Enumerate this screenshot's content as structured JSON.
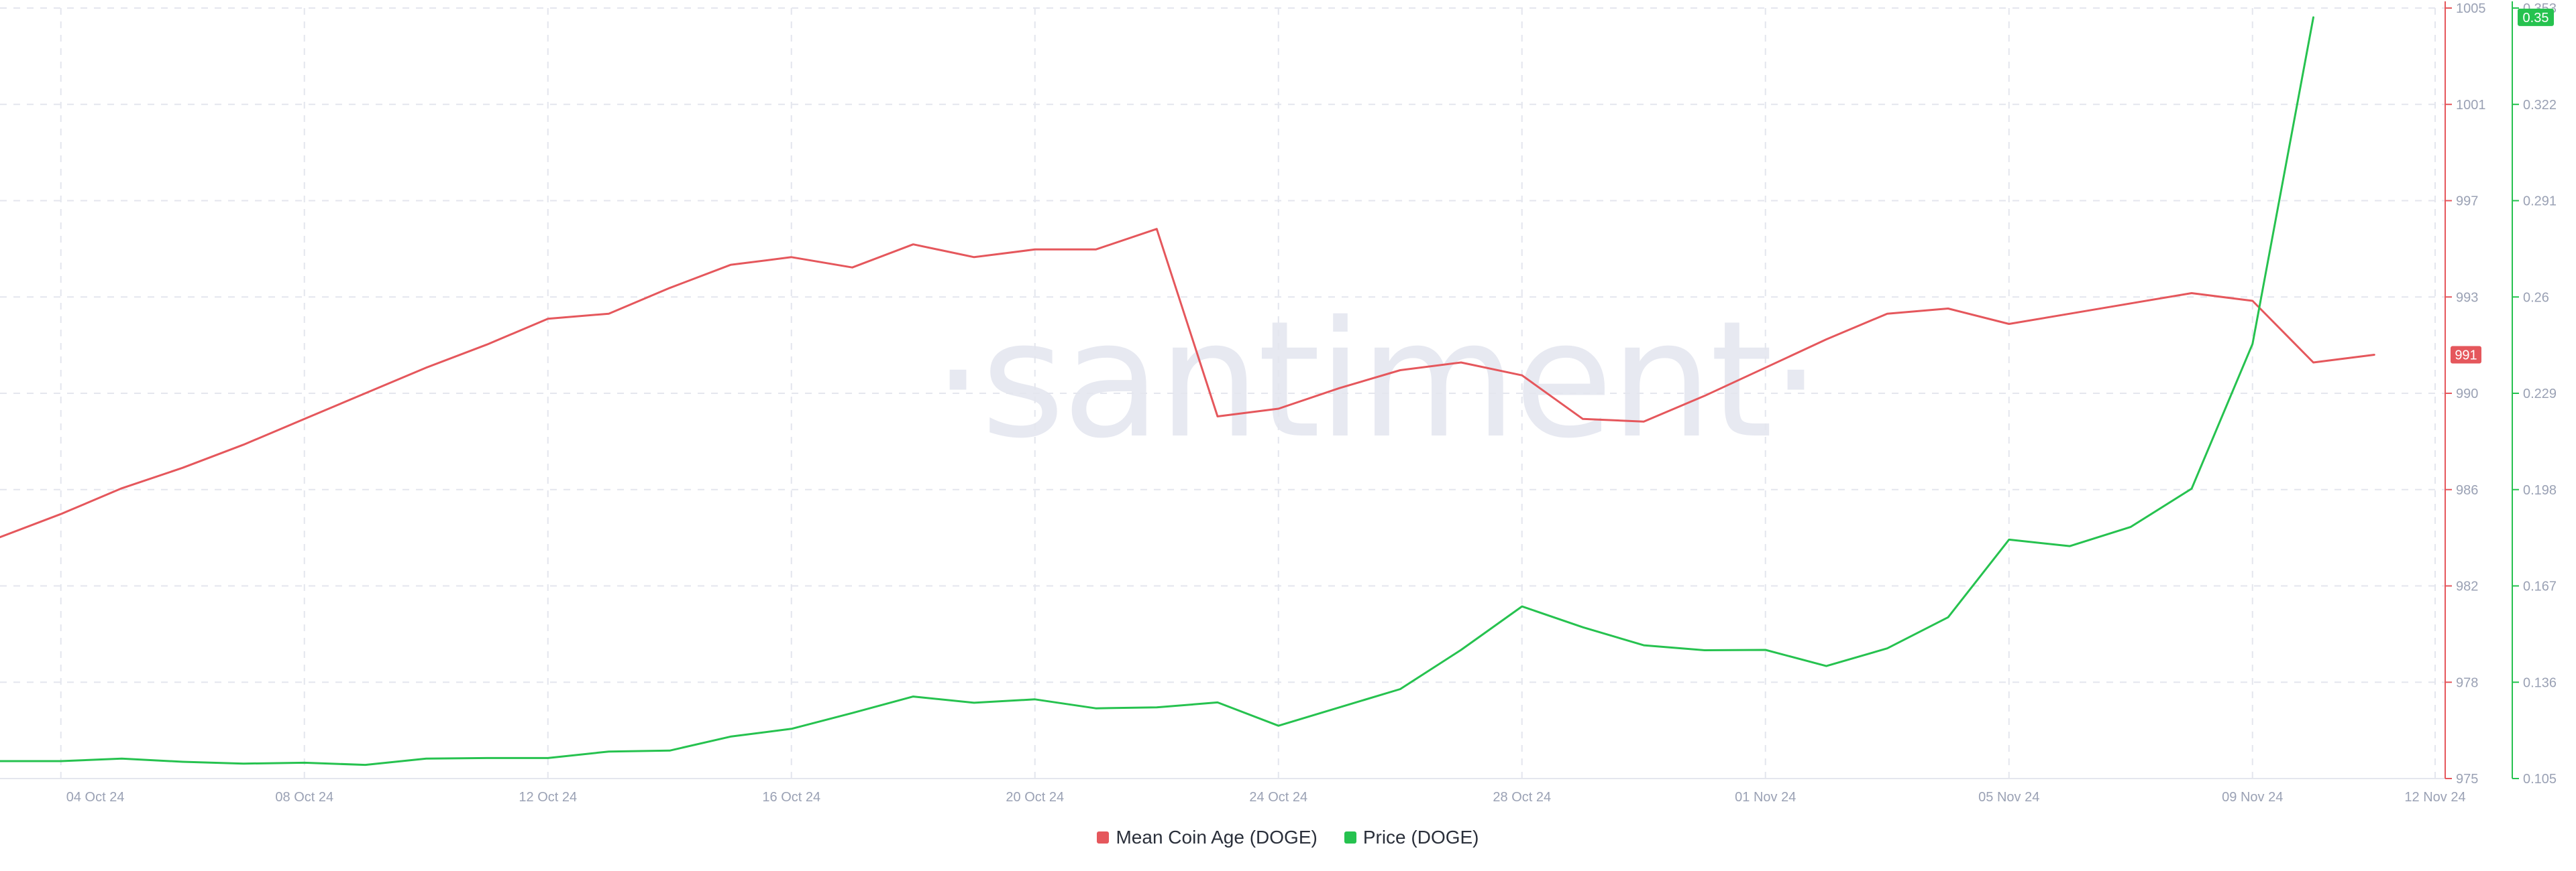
{
  "colors": {
    "mean_coin_age": "#e5575c",
    "price": "#26c24f",
    "grid": "#e4e6ee",
    "tick": "#9aa1b4"
  },
  "watermark": "·santiment·",
  "chart_data": {
    "type": "line",
    "title": "",
    "x_tick_labels": [
      "04 Oct 24",
      "08 Oct 24",
      "12 Oct 24",
      "16 Oct 24",
      "20 Oct 24",
      "24 Oct 24",
      "28 Oct 24",
      "01 Nov 24",
      "05 Nov 24",
      "09 Nov 24",
      "12 Nov 24"
    ],
    "x": [
      "03 Oct 24",
      "04 Oct 24",
      "05 Oct 24",
      "06 Oct 24",
      "07 Oct 24",
      "08 Oct 24",
      "09 Oct 24",
      "10 Oct 24",
      "11 Oct 24",
      "12 Oct 24",
      "13 Oct 24",
      "14 Oct 24",
      "15 Oct 24",
      "16 Oct 24",
      "17 Oct 24",
      "18 Oct 24",
      "19 Oct 24",
      "20 Oct 24",
      "21 Oct 24",
      "22 Oct 24",
      "23 Oct 24",
      "24 Oct 24",
      "25 Oct 24",
      "26 Oct 24",
      "27 Oct 24",
      "28 Oct 24",
      "29 Oct 24",
      "30 Oct 24",
      "31 Oct 24",
      "01 Nov 24",
      "02 Nov 24",
      "03 Nov 24",
      "04 Nov 24",
      "05 Nov 24",
      "06 Nov 24",
      "07 Nov 24",
      "08 Nov 24",
      "09 Nov 24",
      "10 Nov 24",
      "11 Nov 24",
      "12 Nov 24"
    ],
    "series": [
      {
        "name": "Mean Coin Age (DOGE)",
        "axis": "left",
        "values": [
          984.4,
          985.3,
          986.3,
          987.1,
          988.0,
          989.0,
          990.0,
          991.0,
          991.9,
          992.9,
          993.1,
          994.1,
          995.0,
          995.3,
          994.9,
          995.8,
          995.3,
          995.6,
          995.6,
          996.4,
          989.1,
          989.4,
          990.2,
          990.9,
          991.2,
          990.7,
          989.0,
          988.9,
          989.9,
          991.0,
          992.1,
          993.1,
          993.3,
          992.7,
          993.1,
          993.5,
          993.9,
          993.6,
          991.2,
          991.5,
          null
        ],
        "last_label": "991"
      },
      {
        "name": "Price (DOGE)",
        "axis": "right",
        "values": [
          0.1106,
          0.1106,
          0.1114,
          0.1104,
          0.1098,
          0.1101,
          0.1094,
          0.1114,
          0.1116,
          0.1116,
          0.1137,
          0.114,
          0.1185,
          0.121,
          0.1261,
          0.1314,
          0.1294,
          0.1305,
          0.1276,
          0.1279,
          0.1295,
          0.122,
          0.1279,
          0.1338,
          0.1464,
          0.1604,
          0.1537,
          0.1479,
          0.1463,
          0.1464,
          0.1412,
          0.1469,
          0.1569,
          0.1819,
          0.1798,
          0.186,
          0.1983,
          0.2449,
          0.35,
          null,
          null
        ],
        "last_label": "0.35"
      }
    ],
    "y_left": {
      "ticks": [
        "975",
        "978",
        "982",
        "986",
        "990",
        "993",
        "997",
        "1001",
        "1005"
      ],
      "range": [
        975,
        1005
      ]
    },
    "y_right": {
      "ticks": [
        "0.105",
        "0.136",
        "0.167",
        "0.198",
        "0.229",
        "0.26",
        "0.291",
        "0.322",
        "0.353"
      ],
      "range": [
        0.105,
        0.353
      ]
    },
    "grid": true,
    "legend_position": "bottom-center"
  }
}
